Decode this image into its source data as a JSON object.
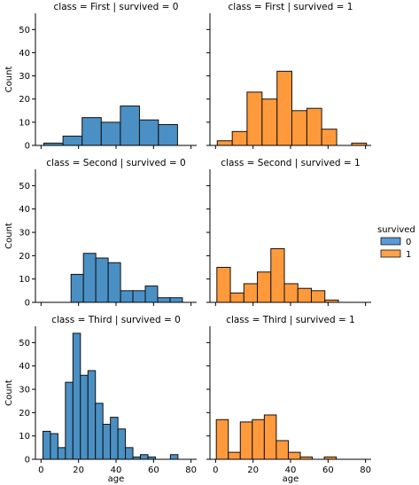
{
  "chart_data": {
    "type": "bar",
    "xlabel": "age",
    "ylabel": "Count",
    "xlim": [
      -3,
      83
    ],
    "ylim": [
      0,
      57
    ],
    "xticks": [
      0,
      20,
      40,
      60,
      80
    ],
    "yticks": [
      0,
      10,
      20,
      30,
      40,
      50
    ],
    "legend": {
      "title": "survived",
      "placement": "right",
      "entries": [
        {
          "label": "0",
          "color": "#5b9bd5"
        },
        {
          "label": "1",
          "color": "#ffa04d"
        }
      ]
    },
    "colors": {
      "0": "#4a90c4",
      "1": "#ff9a3c"
    },
    "panels": [
      {
        "title": "class = First | survived = 0",
        "survived": "0",
        "bins": [
          {
            "x0": 1.5,
            "x1": 11.7,
            "count": 1
          },
          {
            "x0": 11.7,
            "x1": 21.9,
            "count": 4
          },
          {
            "x0": 21.9,
            "x1": 32.1,
            "count": 12
          },
          {
            "x0": 32.1,
            "x1": 42.3,
            "count": 10
          },
          {
            "x0": 42.3,
            "x1": 52.5,
            "count": 17
          },
          {
            "x0": 52.5,
            "x1": 62.6,
            "count": 11
          },
          {
            "x0": 62.6,
            "x1": 72.8,
            "count": 9
          }
        ]
      },
      {
        "title": "class = First | survived = 1",
        "survived": "1",
        "bins": [
          {
            "x0": 0.9,
            "x1": 8.9,
            "count": 2
          },
          {
            "x0": 8.9,
            "x1": 16.8,
            "count": 6
          },
          {
            "x0": 16.8,
            "x1": 24.8,
            "count": 23
          },
          {
            "x0": 24.8,
            "x1": 32.8,
            "count": 20
          },
          {
            "x0": 32.8,
            "x1": 40.7,
            "count": 32
          },
          {
            "x0": 40.7,
            "x1": 48.7,
            "count": 15
          },
          {
            "x0": 48.7,
            "x1": 56.6,
            "count": 16
          },
          {
            "x0": 56.6,
            "x1": 64.6,
            "count": 7
          },
          {
            "x0": 64.6,
            "x1": 72.6,
            "count": 0
          },
          {
            "x0": 72.6,
            "x1": 80.5,
            "count": 1
          }
        ]
      },
      {
        "title": "class = Second | survived = 0",
        "survived": "0",
        "bins": [
          {
            "x0": 16,
            "x1": 22.6,
            "count": 12
          },
          {
            "x0": 22.6,
            "x1": 29.2,
            "count": 21
          },
          {
            "x0": 29.2,
            "x1": 35.8,
            "count": 19
          },
          {
            "x0": 35.8,
            "x1": 42.4,
            "count": 17
          },
          {
            "x0": 42.4,
            "x1": 49,
            "count": 5
          },
          {
            "x0": 49,
            "x1": 55.6,
            "count": 5
          },
          {
            "x0": 55.6,
            "x1": 62.2,
            "count": 7
          },
          {
            "x0": 62.2,
            "x1": 68.8,
            "count": 2
          },
          {
            "x0": 68.8,
            "x1": 75.4,
            "count": 2
          }
        ]
      },
      {
        "title": "class = Second | survived = 1",
        "survived": "1",
        "bins": [
          {
            "x0": 0.7,
            "x1": 7.9,
            "count": 15
          },
          {
            "x0": 7.9,
            "x1": 15.1,
            "count": 4
          },
          {
            "x0": 15.1,
            "x1": 22.3,
            "count": 8
          },
          {
            "x0": 22.3,
            "x1": 29.5,
            "count": 13
          },
          {
            "x0": 29.5,
            "x1": 36.7,
            "count": 23
          },
          {
            "x0": 36.7,
            "x1": 43.9,
            "count": 8
          },
          {
            "x0": 43.9,
            "x1": 51.1,
            "count": 6
          },
          {
            "x0": 51.1,
            "x1": 58.3,
            "count": 5
          },
          {
            "x0": 58.3,
            "x1": 65.5,
            "count": 1
          }
        ]
      },
      {
        "title": "class = Third | survived = 0",
        "survived": "0",
        "bins": [
          {
            "x0": 1,
            "x1": 5,
            "count": 12
          },
          {
            "x0": 5,
            "x1": 9,
            "count": 11
          },
          {
            "x0": 9,
            "x1": 13,
            "count": 5
          },
          {
            "x0": 13,
            "x1": 17,
            "count": 33
          },
          {
            "x0": 17,
            "x1": 21,
            "count": 54
          },
          {
            "x0": 21,
            "x1": 25,
            "count": 36
          },
          {
            "x0": 25,
            "x1": 29,
            "count": 38
          },
          {
            "x0": 29,
            "x1": 33,
            "count": 24
          },
          {
            "x0": 33,
            "x1": 37,
            "count": 15
          },
          {
            "x0": 37,
            "x1": 41,
            "count": 18
          },
          {
            "x0": 41,
            "x1": 45,
            "count": 13
          },
          {
            "x0": 45,
            "x1": 49,
            "count": 5
          },
          {
            "x0": 49,
            "x1": 53,
            "count": 1
          },
          {
            "x0": 53,
            "x1": 57,
            "count": 2
          },
          {
            "x0": 57,
            "x1": 61,
            "count": 1
          },
          {
            "x0": 61,
            "x1": 65,
            "count": 0
          },
          {
            "x0": 65,
            "x1": 69,
            "count": 0
          },
          {
            "x0": 69,
            "x1": 73,
            "count": 2
          }
        ]
      },
      {
        "title": "class = Third | survived = 1",
        "survived": "1",
        "bins": [
          {
            "x0": 0.4,
            "x1": 6.8,
            "count": 17
          },
          {
            "x0": 6.8,
            "x1": 13.2,
            "count": 3
          },
          {
            "x0": 13.2,
            "x1": 19.6,
            "count": 16
          },
          {
            "x0": 19.6,
            "x1": 26,
            "count": 17
          },
          {
            "x0": 26,
            "x1": 32.4,
            "count": 19
          },
          {
            "x0": 32.4,
            "x1": 38.8,
            "count": 8
          },
          {
            "x0": 38.8,
            "x1": 45.2,
            "count": 3
          },
          {
            "x0": 45.2,
            "x1": 51.6,
            "count": 1
          },
          {
            "x0": 51.6,
            "x1": 58,
            "count": 0
          },
          {
            "x0": 58,
            "x1": 64.4,
            "count": 1
          }
        ]
      }
    ]
  }
}
